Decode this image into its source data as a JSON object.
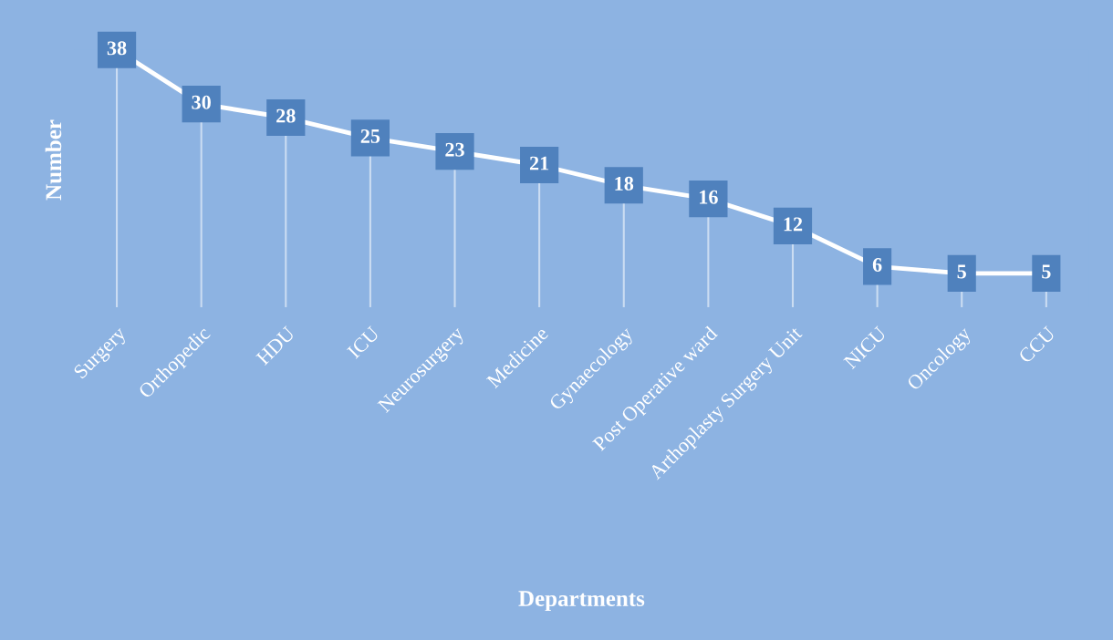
{
  "chart_data": {
    "type": "line",
    "xlabel": "Departments",
    "ylabel": "Number",
    "categories": [
      "Surgery",
      "Orthopedic",
      "HDU",
      "ICU",
      "Neurosurgery",
      "Medicine",
      "Gynaecology",
      "Post Operative ward",
      "Arthoplasty Surgery Unit",
      "NICU",
      "Oncology",
      "CCU"
    ],
    "series": [
      {
        "color": "#ffffff",
        "marker": "square",
        "values": [
          38,
          30,
          28,
          25,
          23,
          21,
          18,
          16,
          12,
          6,
          5,
          5
        ]
      }
    ],
    "line_style": "solid",
    "data_labels": true,
    "grid": "x",
    "legend": false,
    "tick_labels": "x"
  }
}
